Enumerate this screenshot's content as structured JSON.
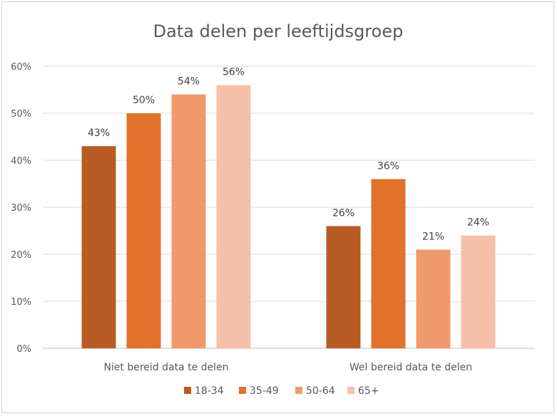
{
  "chart_data": {
    "type": "bar",
    "title": "Data delen per leeftijdsgroep",
    "categories": [
      "Niet bereid data te delen",
      "Wel bereid data te delen"
    ],
    "series": [
      {
        "name": "18-34",
        "values": [
          43,
          26
        ],
        "labels": [
          "43%",
          "26%"
        ],
        "color": "#b85c23"
      },
      {
        "name": "35-49",
        "values": [
          50,
          36
        ],
        "labels": [
          "50%",
          "36%"
        ],
        "color": "#e0722c"
      },
      {
        "name": "50-64",
        "values": [
          54,
          21
        ],
        "labels": [
          "54%",
          "21%"
        ],
        "color": "#f09a6c"
      },
      {
        "name": "65+",
        "values": [
          56,
          24
        ],
        "labels": [
          "56%",
          "24%"
        ],
        "color": "#f6c0a8"
      }
    ],
    "yticks": [
      "0%",
      "10%",
      "20%",
      "30%",
      "40%",
      "50%",
      "60%"
    ],
    "ylim": [
      0,
      60
    ],
    "grid": true,
    "legend": "bottom",
    "xlabel": "",
    "ylabel": ""
  }
}
